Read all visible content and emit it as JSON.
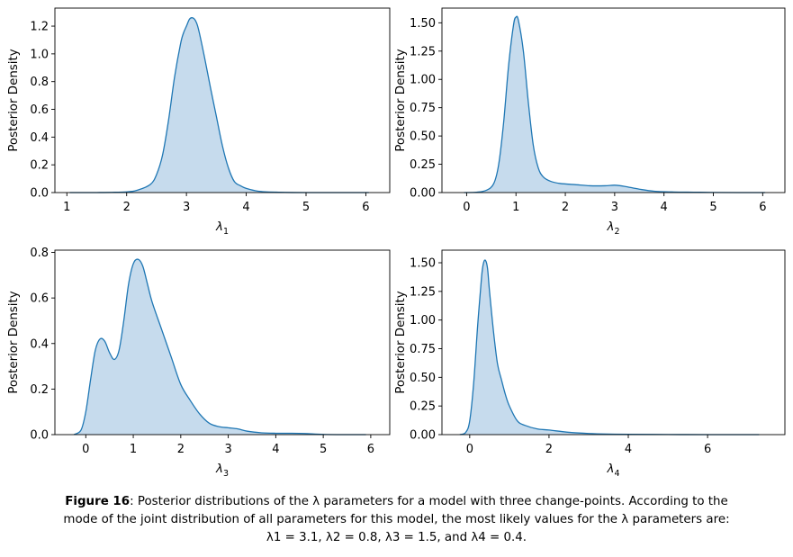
{
  "figure": {
    "fill_color": "#c6dbed",
    "line_color": "#1f77b4"
  },
  "chart_data": [
    {
      "type": "area",
      "ylabel": "Posterior Density",
      "xlabel_base": "λ",
      "xlabel_sub": "1",
      "xlim": [
        0.8,
        6.4
      ],
      "ylim": [
        0,
        1.33
      ],
      "xticks": [
        1,
        2,
        3,
        4,
        5,
        6
      ],
      "xtick_labels": [
        "1",
        "2",
        "3",
        "4",
        "5",
        "6"
      ],
      "yticks": [
        0,
        0.2,
        0.4,
        0.6,
        0.8,
        1.0,
        1.2
      ],
      "ytick_labels": [
        "0.0",
        "0.2",
        "0.4",
        "0.6",
        "0.8",
        "1.0",
        "1.2"
      ],
      "x": [
        1.05,
        1.5,
        2.0,
        2.2,
        2.4,
        2.5,
        2.6,
        2.7,
        2.8,
        2.9,
        2.95,
        3.0,
        3.05,
        3.1,
        3.15,
        3.2,
        3.3,
        3.4,
        3.5,
        3.6,
        3.7,
        3.8,
        3.9,
        4.0,
        4.2,
        4.5,
        5.0,
        5.5,
        6.05
      ],
      "y": [
        0.0,
        0.0,
        0.005,
        0.02,
        0.06,
        0.13,
        0.27,
        0.52,
        0.83,
        1.07,
        1.15,
        1.2,
        1.25,
        1.26,
        1.24,
        1.18,
        0.98,
        0.76,
        0.55,
        0.34,
        0.18,
        0.08,
        0.05,
        0.03,
        0.01,
        0.003,
        0.0,
        0.0,
        0.0
      ]
    },
    {
      "type": "area",
      "ylabel": "Posterior Density",
      "xlabel_base": "λ",
      "xlabel_sub": "2",
      "xlim": [
        -0.5,
        6.45
      ],
      "ylim": [
        0,
        1.63
      ],
      "xticks": [
        0,
        1,
        2,
        3,
        4,
        5,
        6
      ],
      "xtick_labels": [
        "0",
        "1",
        "2",
        "3",
        "4",
        "5",
        "6"
      ],
      "yticks": [
        0,
        0.25,
        0.5,
        0.75,
        1.0,
        1.25,
        1.5
      ],
      "ytick_labels": [
        "0.00",
        "0.25",
        "0.50",
        "0.75",
        "1.00",
        "1.25",
        "1.50"
      ],
      "x": [
        -0.05,
        0.2,
        0.4,
        0.55,
        0.65,
        0.75,
        0.85,
        0.95,
        1.0,
        1.05,
        1.15,
        1.25,
        1.35,
        1.45,
        1.55,
        1.7,
        1.9,
        2.2,
        2.5,
        2.8,
        3.0,
        3.2,
        3.5,
        3.8,
        4.2,
        4.6,
        5.0,
        5.5,
        6.05
      ],
      "y": [
        0.0,
        0.003,
        0.02,
        0.08,
        0.25,
        0.62,
        1.12,
        1.48,
        1.55,
        1.52,
        1.25,
        0.8,
        0.42,
        0.22,
        0.14,
        0.1,
        0.08,
        0.07,
        0.06,
        0.06,
        0.065,
        0.055,
        0.03,
        0.012,
        0.005,
        0.003,
        0.001,
        0.0,
        0.0
      ]
    },
    {
      "type": "area",
      "ylabel": "Posterior Density",
      "xlabel_base": "λ",
      "xlabel_sub": "3",
      "xlim": [
        -0.65,
        6.4
      ],
      "ylim": [
        0,
        0.81
      ],
      "xticks": [
        0,
        1,
        2,
        3,
        4,
        5,
        6
      ],
      "xtick_labels": [
        "0",
        "1",
        "2",
        "3",
        "4",
        "5",
        "6"
      ],
      "yticks": [
        0,
        0.2,
        0.4,
        0.6,
        0.8
      ],
      "ytick_labels": [
        "0.0",
        "0.2",
        "0.4",
        "0.6",
        "0.8"
      ],
      "x": [
        -0.25,
        -0.1,
        0.0,
        0.1,
        0.2,
        0.3,
        0.4,
        0.5,
        0.6,
        0.7,
        0.8,
        0.9,
        1.0,
        1.1,
        1.2,
        1.3,
        1.4,
        1.6,
        1.8,
        2.0,
        2.2,
        2.4,
        2.6,
        2.8,
        3.0,
        3.2,
        3.4,
        3.7,
        4.0,
        4.3,
        4.6,
        5.0,
        5.5,
        5.9
      ],
      "y": [
        0.0,
        0.02,
        0.1,
        0.24,
        0.37,
        0.42,
        0.41,
        0.36,
        0.33,
        0.37,
        0.5,
        0.66,
        0.75,
        0.77,
        0.74,
        0.66,
        0.58,
        0.46,
        0.34,
        0.22,
        0.15,
        0.09,
        0.05,
        0.035,
        0.03,
        0.025,
        0.015,
        0.008,
        0.006,
        0.006,
        0.005,
        0.001,
        0.0,
        0.0
      ]
    },
    {
      "type": "area",
      "ylabel": "Posterior Density",
      "xlabel_base": "λ",
      "xlabel_sub": "4",
      "xlim": [
        -0.7,
        7.95
      ],
      "ylim": [
        0,
        1.61
      ],
      "xticks": [
        0,
        2,
        4,
        6
      ],
      "xtick_labels": [
        "0",
        "2",
        "4",
        "6"
      ],
      "yticks": [
        0,
        0.25,
        0.5,
        0.75,
        1.0,
        1.25,
        1.5
      ],
      "ytick_labels": [
        "0.00",
        "0.25",
        "0.50",
        "0.75",
        "1.00",
        "1.25",
        "1.50"
      ],
      "x": [
        -0.25,
        -0.1,
        0.0,
        0.1,
        0.2,
        0.3,
        0.35,
        0.4,
        0.45,
        0.5,
        0.6,
        0.7,
        0.8,
        0.9,
        1.0,
        1.2,
        1.4,
        1.7,
        2.0,
        2.5,
        3.0,
        3.5,
        4.0,
        5.0,
        6.0,
        7.3
      ],
      "y": [
        0.0,
        0.02,
        0.12,
        0.45,
        0.95,
        1.38,
        1.5,
        1.52,
        1.45,
        1.25,
        0.9,
        0.62,
        0.48,
        0.35,
        0.25,
        0.12,
        0.08,
        0.05,
        0.04,
        0.02,
        0.01,
        0.005,
        0.003,
        0.001,
        0.0,
        0.0
      ]
    }
  ],
  "caption": {
    "fig_label": "Figure 16",
    "line1_rest": ": Posterior distributions of the λ parameters for a model with three change-points. According to the",
    "line2": "mode of the joint distribution of all parameters for this model, the most likely values for the λ parameters are:",
    "line3": "λ1 = 3.1, λ2 = 0.8, λ3 = 1.5, and λ4 = 0.4."
  }
}
